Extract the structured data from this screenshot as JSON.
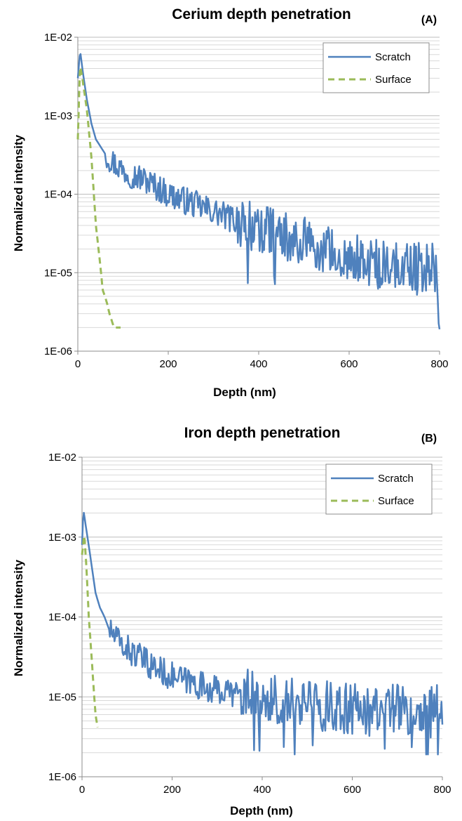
{
  "panels": [
    {
      "tag": "(A)",
      "chart_data": {
        "type": "line",
        "title": "Cerium depth penetration",
        "xlabel": "Depth (nm)",
        "ylabel": "Normalized intensity",
        "xlim": [
          0,
          800
        ],
        "ylim": [
          1e-06,
          0.01
        ],
        "yscale": "log",
        "x_ticks": [
          0,
          200,
          400,
          600,
          800
        ],
        "x_tick_labels": [
          "0",
          "200",
          "400",
          "600",
          "800"
        ],
        "y_ticks": [
          1e-06,
          1e-05,
          0.0001,
          0.001,
          0.01
        ],
        "y_tick_labels": [
          "1E-06",
          "1E-05",
          "1E-04",
          "1E-03",
          "1E-02"
        ],
        "grid": true,
        "legend_position": "top-right",
        "series": [
          {
            "name": "Scratch",
            "style": "solid",
            "color": "#4f81bd",
            "x": [
              0,
              5,
              10,
              20,
              30,
              40,
              60,
              80,
              100,
              150,
              200,
              300,
              400,
              500,
              600,
              700,
              790,
              800
            ],
            "y": [
              0.003,
              0.0068,
              0.004,
              0.0016,
              0.0008,
              0.0005,
              0.00033,
              0.00025,
              0.0002,
              0.00015,
              0.0001,
              6e-05,
              3.5e-05,
              2.5e-05,
              1.5e-05,
              1.2e-05,
              1.2e-05,
              2e-06
            ]
          },
          {
            "name": "Surface",
            "style": "dashed",
            "color": "#9bbb59",
            "x": [
              0,
              5,
              10,
              20,
              30,
              40,
              50,
              55,
              60,
              65,
              70,
              80,
              95
            ],
            "y": [
              0.0005,
              0.0045,
              0.003,
              0.0012,
              0.0003,
              4e-05,
              1.2e-05,
              6e-06,
              5e-06,
              4e-06,
              3e-06,
              2e-06,
              2e-06
            ]
          }
        ]
      }
    },
    {
      "tag": "(B)",
      "chart_data": {
        "type": "line",
        "title": "Iron depth penetration",
        "xlabel": "Depth (nm)",
        "ylabel": "Normalized intensity",
        "xlim": [
          0,
          800
        ],
        "ylim": [
          1e-06,
          0.01
        ],
        "yscale": "log",
        "x_ticks": [
          0,
          200,
          400,
          600,
          800
        ],
        "x_tick_labels": [
          "0",
          "200",
          "400",
          "600",
          "800"
        ],
        "y_ticks": [
          1e-06,
          1e-05,
          0.0001,
          0.001,
          0.01
        ],
        "y_tick_labels": [
          "1E-06",
          "1E-05",
          "1E-04",
          "1E-03",
          "1E-02"
        ],
        "grid": true,
        "legend_position": "top-right",
        "series": [
          {
            "name": "Scratch",
            "style": "solid",
            "color": "#4f81bd",
            "x": [
              0,
              3,
              10,
              20,
              30,
              40,
              50,
              60,
              80,
              100,
              150,
              200,
              300,
              400,
              500,
              600,
              700,
              800
            ],
            "y": [
              0.0008,
              0.0022,
              0.0012,
              0.0005,
              0.0002,
              0.00013,
              0.0001,
              7e-05,
              5e-05,
              4e-05,
              2.5e-05,
              1.8e-05,
              1.2e-05,
              1e-05,
              8e-06,
              7e-06,
              7e-06,
              7e-06
            ]
          },
          {
            "name": "Surface",
            "style": "dashed",
            "color": "#9bbb59",
            "x": [
              0,
              5,
              10,
              15,
              20,
              25,
              30,
              35
            ],
            "y": [
              0.0006,
              0.0011,
              0.0004,
              0.0001,
              4e-05,
              1.5e-05,
              6e-06,
              4e-06
            ]
          }
        ]
      }
    }
  ]
}
